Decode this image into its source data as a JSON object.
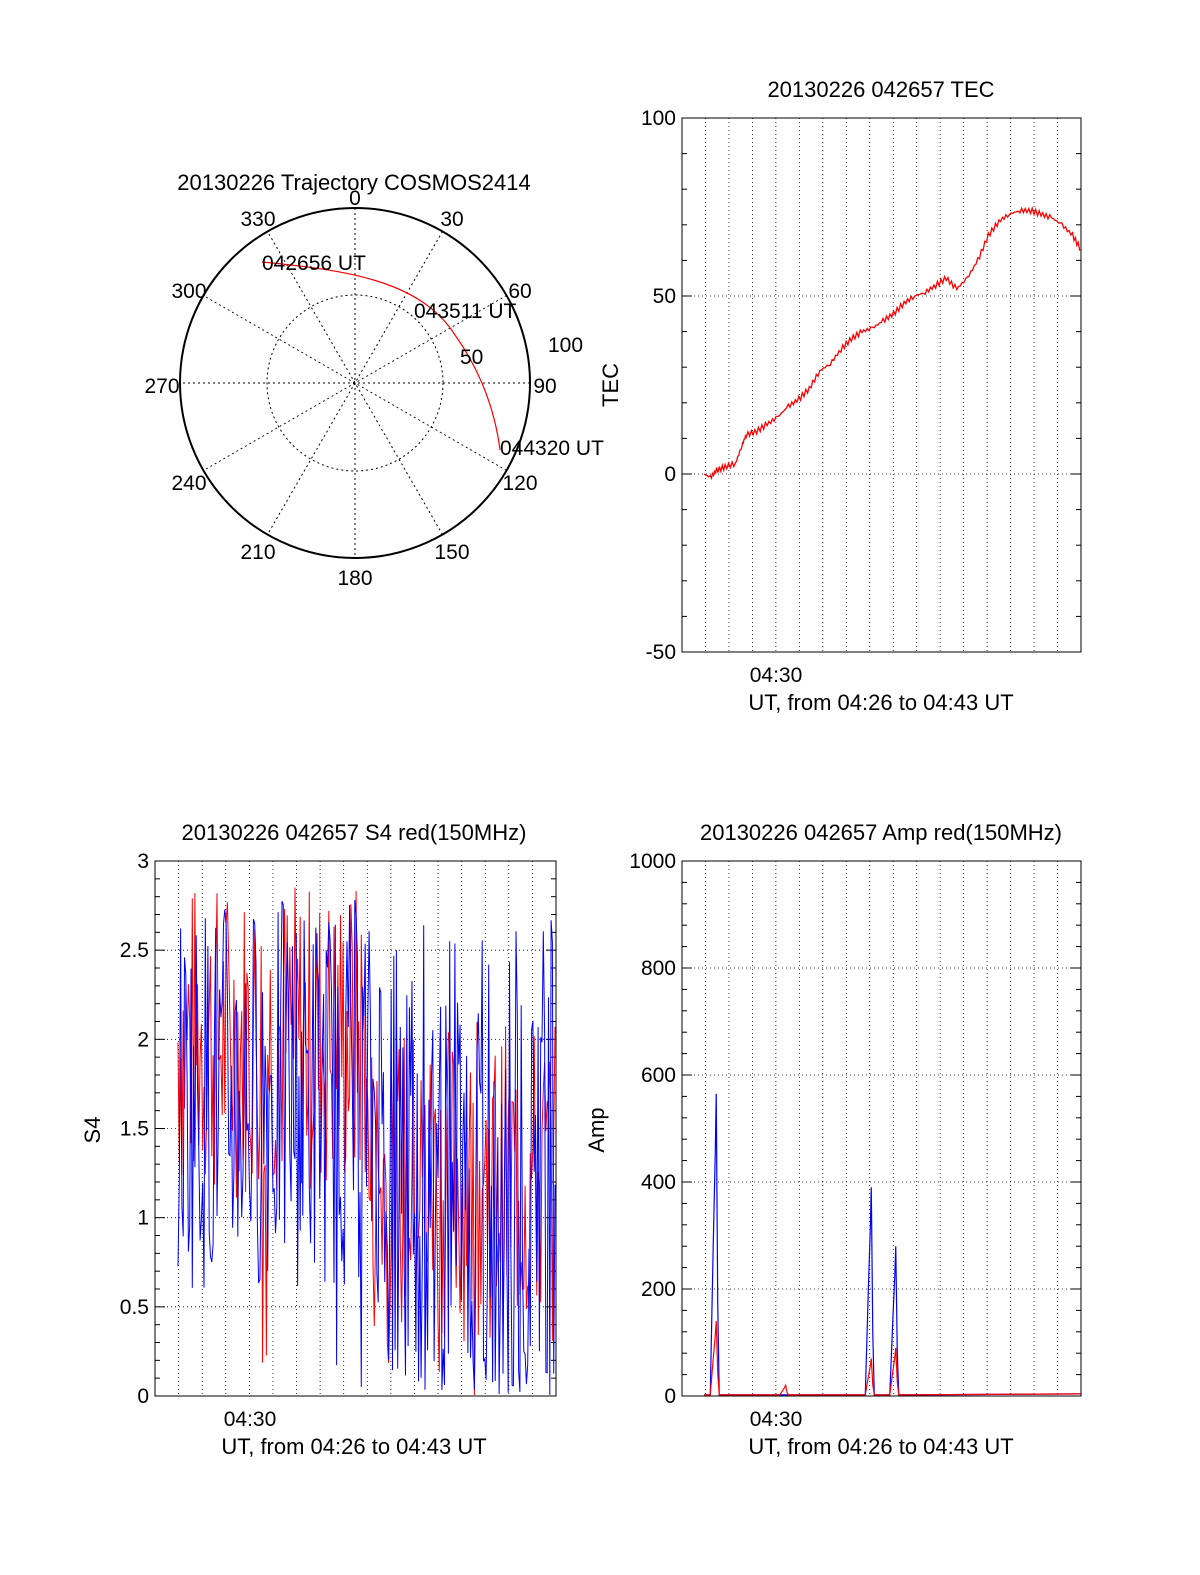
{
  "chart_data": [
    {
      "type": "polar",
      "title": "20130226 Trajectory COSMOS2414",
      "azimuth_labels": [
        "0",
        "30",
        "60",
        "90",
        "120",
        "150",
        "180",
        "210",
        "240",
        "270",
        "300",
        "330"
      ],
      "radial_labels": [
        "50",
        "100"
      ],
      "trajectory": {
        "color": "#ff0000",
        "points": [
          {
            "time": "042656 UT",
            "azimuth": 330,
            "elevation": 0
          },
          {
            "time": "043511 UT",
            "azimuth": 58,
            "elevation": 20
          },
          {
            "time": "044320 UT",
            "azimuth": 115,
            "elevation": 0
          }
        ]
      },
      "point_labels": [
        "042656 UT",
        "043511 UT",
        "044320 UT"
      ]
    },
    {
      "type": "line",
      "title": "20130226 042657 TEC",
      "ylabel": "TEC",
      "xlabel": "UT, from 04:26 to 04:43 UT",
      "x_tick_label": "04:30",
      "y_ticks": [
        "100",
        "50",
        "0",
        "-50"
      ],
      "ylim": [
        -50,
        100
      ],
      "xlim_minutes": [
        4.0,
        21.0
      ],
      "grid": true,
      "series": [
        {
          "color": "#ff0000",
          "x": [
            0,
            0.3,
            0.6,
            1.0,
            1.5,
            1.8,
            2.0,
            2.5,
            3.0,
            3.5,
            4.0,
            4.5,
            5.0,
            5.5,
            6.0,
            6.5,
            7.0,
            7.5,
            8.0,
            8.5,
            9.0,
            9.5,
            10.0,
            10.5,
            11.0,
            11.5,
            12.0,
            12.5,
            13.0,
            13.5,
            14.0,
            14.5,
            15.0,
            15.5,
            16.0,
            16.5,
            17.0,
            17.5,
            17.9
          ],
          "values": [
            0,
            -1,
            1,
            2,
            3,
            8,
            11,
            12,
            14,
            16,
            19,
            21,
            24,
            29,
            31,
            35,
            38,
            40,
            41,
            43,
            45,
            48,
            50,
            51,
            53,
            55,
            52,
            55,
            60,
            67,
            71,
            73,
            74,
            74,
            73,
            72,
            70,
            67,
            63
          ]
        }
      ]
    },
    {
      "type": "line",
      "title": "20130226 042657 S4 red(150MHz)",
      "ylabel": "S4",
      "xlabel": "UT, from 04:26 to 04:43 UT",
      "x_tick_label": "04:30",
      "y_ticks": [
        "3",
        "2.5",
        "2",
        "1.5",
        "1",
        "0.5",
        "0"
      ],
      "ylim": [
        0,
        3
      ],
      "grid": true,
      "series": [
        {
          "name": "",
          "color": "#ff0000",
          "envelope": "noisy S4, mostly 0.5-3"
        },
        {
          "name": "",
          "color": "#0000ff",
          "envelope": "noisy S4, mostly 0-3"
        }
      ]
    },
    {
      "type": "line",
      "title": "20130226 042657 Amp red(150MHz)",
      "ylabel": "Amp",
      "xlabel": "UT, from 04:26 to 04:43 UT",
      "x_tick_label": "04:30",
      "y_ticks": [
        "1000",
        "800",
        "600",
        "400",
        "200",
        "0"
      ],
      "ylim": [
        0,
        1000
      ],
      "grid": true,
      "series": [
        {
          "color": "#0000ff",
          "peaks": [
            {
              "x": 0.6,
              "value": 565
            },
            {
              "x": 8.2,
              "value": 390
            },
            {
              "x": 9.4,
              "value": 280
            }
          ]
        },
        {
          "color": "#ff0000",
          "peaks": [
            {
              "x": 0.6,
              "value": 140
            },
            {
              "x": 4.0,
              "value": 20
            },
            {
              "x": 8.2,
              "value": 70
            },
            {
              "x": 9.4,
              "value": 90
            }
          ]
        }
      ]
    }
  ]
}
